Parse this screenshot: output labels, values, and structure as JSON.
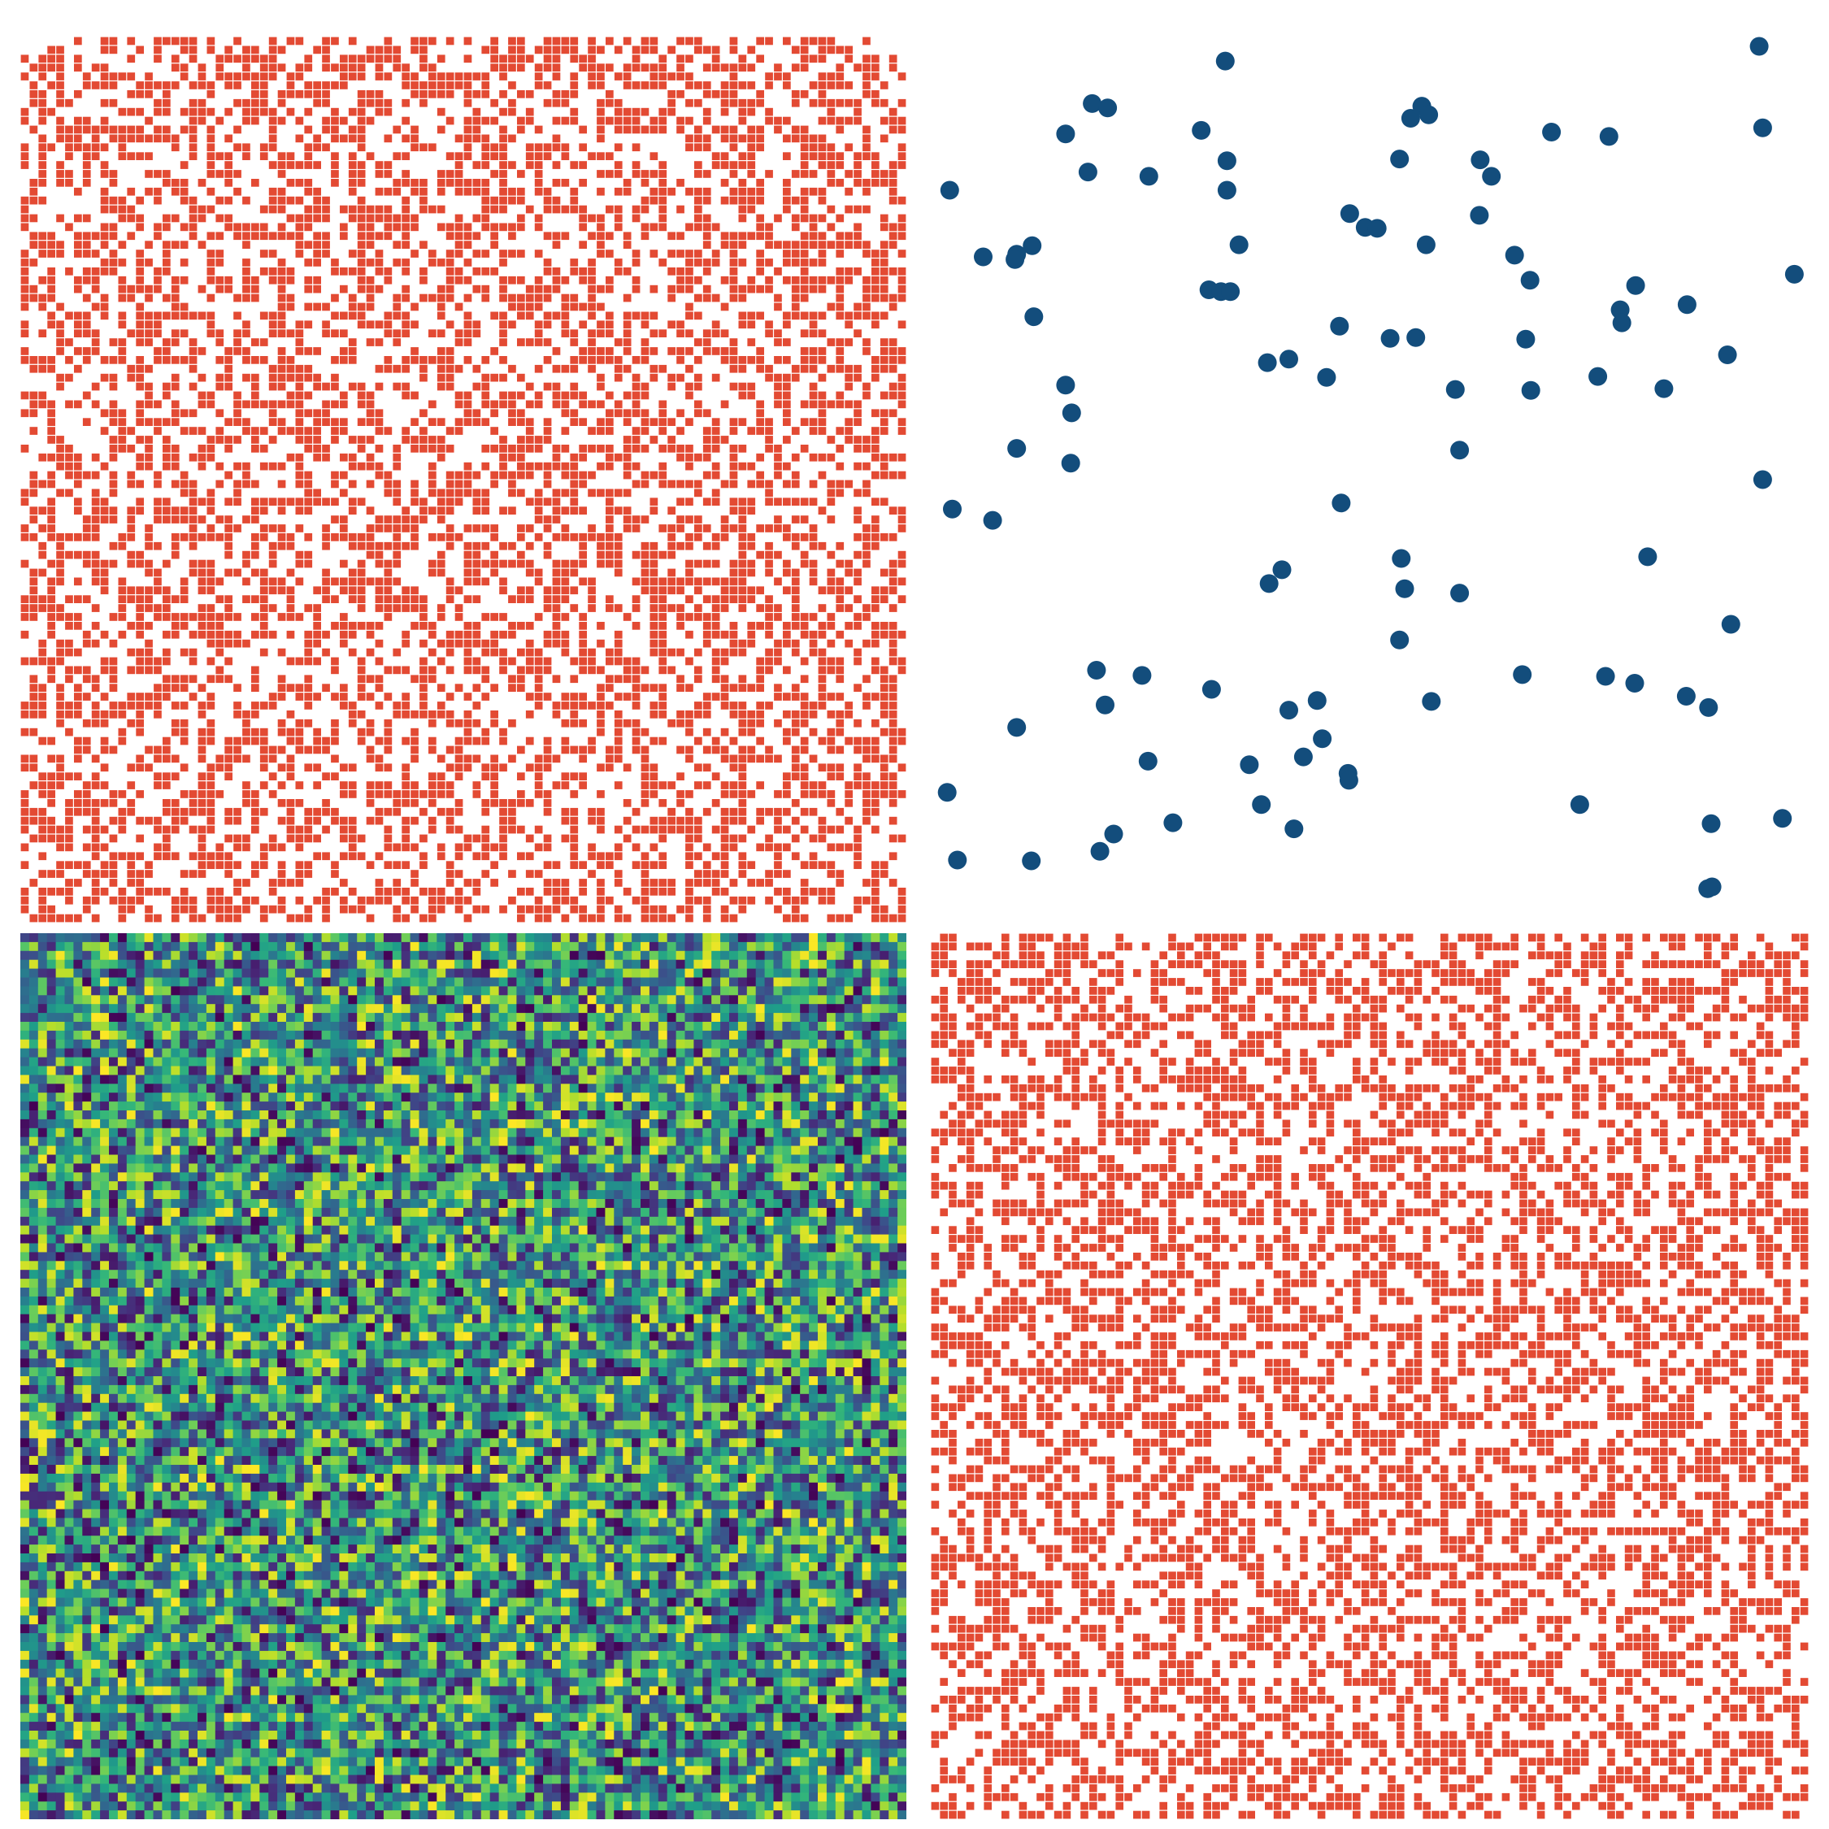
{
  "colors": {
    "binary_fill": "#e34a33",
    "scatter_fill": "#134d7c",
    "background": "#ffffff",
    "colormap": "viridis"
  },
  "chart_data": [
    {
      "type": "heatmap",
      "title": "",
      "xlabel": "",
      "ylabel": "",
      "grid": false,
      "rows": 100,
      "cols": 100,
      "value_range": [
        0,
        1
      ],
      "encoding": "binary",
      "fill_fraction": 0.5,
      "seed": 11
    },
    {
      "type": "scatter",
      "title": "",
      "xlabel": "",
      "ylabel": "",
      "grid": false,
      "xlim": [
        0,
        1
      ],
      "ylim": [
        0,
        1
      ],
      "points": [
        {
          "x": 0.949,
          "y": 1.0
        },
        {
          "x": 0.327,
          "y": 0.983
        },
        {
          "x": 0.172,
          "y": 0.934
        },
        {
          "x": 0.19,
          "y": 0.929
        },
        {
          "x": 0.543,
          "y": 0.917
        },
        {
          "x": 0.556,
          "y": 0.931
        },
        {
          "x": 0.564,
          "y": 0.921
        },
        {
          "x": 0.141,
          "y": 0.899
        },
        {
          "x": 0.299,
          "y": 0.903
        },
        {
          "x": 0.707,
          "y": 0.901
        },
        {
          "x": 0.774,
          "y": 0.896
        },
        {
          "x": 0.953,
          "y": 0.906
        },
        {
          "x": 0.329,
          "y": 0.868
        },
        {
          "x": 0.53,
          "y": 0.87
        },
        {
          "x": 0.624,
          "y": 0.869
        },
        {
          "x": 0.167,
          "y": 0.855
        },
        {
          "x": 0.238,
          "y": 0.85
        },
        {
          "x": 0.637,
          "y": 0.85
        },
        {
          "x": 0.006,
          "y": 0.834
        },
        {
          "x": 0.329,
          "y": 0.834
        },
        {
          "x": 0.472,
          "y": 0.807
        },
        {
          "x": 0.623,
          "y": 0.805
        },
        {
          "x": 0.49,
          "y": 0.791
        },
        {
          "x": 0.504,
          "y": 0.79
        },
        {
          "x": 0.343,
          "y": 0.771
        },
        {
          "x": 0.102,
          "y": 0.77
        },
        {
          "x": 0.045,
          "y": 0.757
        },
        {
          "x": 0.084,
          "y": 0.76
        },
        {
          "x": 0.082,
          "y": 0.754
        },
        {
          "x": 0.561,
          "y": 0.771
        },
        {
          "x": 0.664,
          "y": 0.759
        },
        {
          "x": 0.99,
          "y": 0.737
        },
        {
          "x": 0.308,
          "y": 0.719
        },
        {
          "x": 0.322,
          "y": 0.717
        },
        {
          "x": 0.333,
          "y": 0.717
        },
        {
          "x": 0.682,
          "y": 0.73
        },
        {
          "x": 0.805,
          "y": 0.724
        },
        {
          "x": 0.865,
          "y": 0.702
        },
        {
          "x": 0.787,
          "y": 0.696
        },
        {
          "x": 0.104,
          "y": 0.688
        },
        {
          "x": 0.677,
          "y": 0.662
        },
        {
          "x": 0.789,
          "y": 0.681
        },
        {
          "x": 0.912,
          "y": 0.644
        },
        {
          "x": 0.46,
          "y": 0.677
        },
        {
          "x": 0.519,
          "y": 0.663
        },
        {
          "x": 0.401,
          "y": 0.639
        },
        {
          "x": 0.445,
          "y": 0.618
        },
        {
          "x": 0.549,
          "y": 0.664
        },
        {
          "x": 0.376,
          "y": 0.635
        },
        {
          "x": 0.761,
          "y": 0.619
        },
        {
          "x": 0.838,
          "y": 0.605
        },
        {
          "x": 0.141,
          "y": 0.609
        },
        {
          "x": 0.595,
          "y": 0.604
        },
        {
          "x": 0.148,
          "y": 0.577
        },
        {
          "x": 0.683,
          "y": 0.603
        },
        {
          "x": 0.6,
          "y": 0.534
        },
        {
          "x": 0.084,
          "y": 0.536
        },
        {
          "x": 0.147,
          "y": 0.519
        },
        {
          "x": 0.953,
          "y": 0.5
        },
        {
          "x": 0.009,
          "y": 0.466
        },
        {
          "x": 0.056,
          "y": 0.453
        },
        {
          "x": 0.462,
          "y": 0.473
        },
        {
          "x": 0.532,
          "y": 0.409
        },
        {
          "x": 0.393,
          "y": 0.396
        },
        {
          "x": 0.378,
          "y": 0.38
        },
        {
          "x": 0.536,
          "y": 0.374
        },
        {
          "x": 0.6,
          "y": 0.369
        },
        {
          "x": 0.819,
          "y": 0.411
        },
        {
          "x": 0.53,
          "y": 0.315
        },
        {
          "x": 0.916,
          "y": 0.333
        },
        {
          "x": 0.177,
          "y": 0.28
        },
        {
          "x": 0.23,
          "y": 0.274
        },
        {
          "x": 0.673,
          "y": 0.275
        },
        {
          "x": 0.311,
          "y": 0.258
        },
        {
          "x": 0.434,
          "y": 0.245
        },
        {
          "x": 0.77,
          "y": 0.273
        },
        {
          "x": 0.804,
          "y": 0.265
        },
        {
          "x": 0.864,
          "y": 0.25
        },
        {
          "x": 0.89,
          "y": 0.237
        },
        {
          "x": 0.187,
          "y": 0.24
        },
        {
          "x": 0.401,
          "y": 0.234
        },
        {
          "x": 0.567,
          "y": 0.244
        },
        {
          "x": 0.084,
          "y": 0.214
        },
        {
          "x": 0.44,
          "y": 0.201
        },
        {
          "x": 0.418,
          "y": 0.18
        },
        {
          "x": 0.237,
          "y": 0.175
        },
        {
          "x": 0.355,
          "y": 0.171
        },
        {
          "x": 0.47,
          "y": 0.161
        },
        {
          "x": 0.471,
          "y": 0.153
        },
        {
          "x": 0.003,
          "y": 0.139
        },
        {
          "x": 0.369,
          "y": 0.125
        },
        {
          "x": 0.74,
          "y": 0.125
        },
        {
          "x": 0.266,
          "y": 0.104
        },
        {
          "x": 0.197,
          "y": 0.091
        },
        {
          "x": 0.407,
          "y": 0.097
        },
        {
          "x": 0.893,
          "y": 0.103
        },
        {
          "x": 0.976,
          "y": 0.109
        },
        {
          "x": 0.015,
          "y": 0.061
        },
        {
          "x": 0.101,
          "y": 0.06
        },
        {
          "x": 0.181,
          "y": 0.071
        },
        {
          "x": 0.894,
          "y": 0.03
        },
        {
          "x": 0.889,
          "y": 0.028
        }
      ]
    },
    {
      "type": "heatmap",
      "title": "",
      "xlabel": "",
      "ylabel": "",
      "grid": false,
      "rows": 100,
      "cols": 100,
      "value_range": [
        0,
        1
      ],
      "encoding": "continuous",
      "colormap": "viridis",
      "seed": 29
    },
    {
      "type": "heatmap",
      "title": "",
      "xlabel": "",
      "ylabel": "",
      "grid": false,
      "rows": 100,
      "cols": 100,
      "value_range": [
        0,
        1
      ],
      "encoding": "binary",
      "fill_fraction": 0.5,
      "seed": 47
    }
  ]
}
